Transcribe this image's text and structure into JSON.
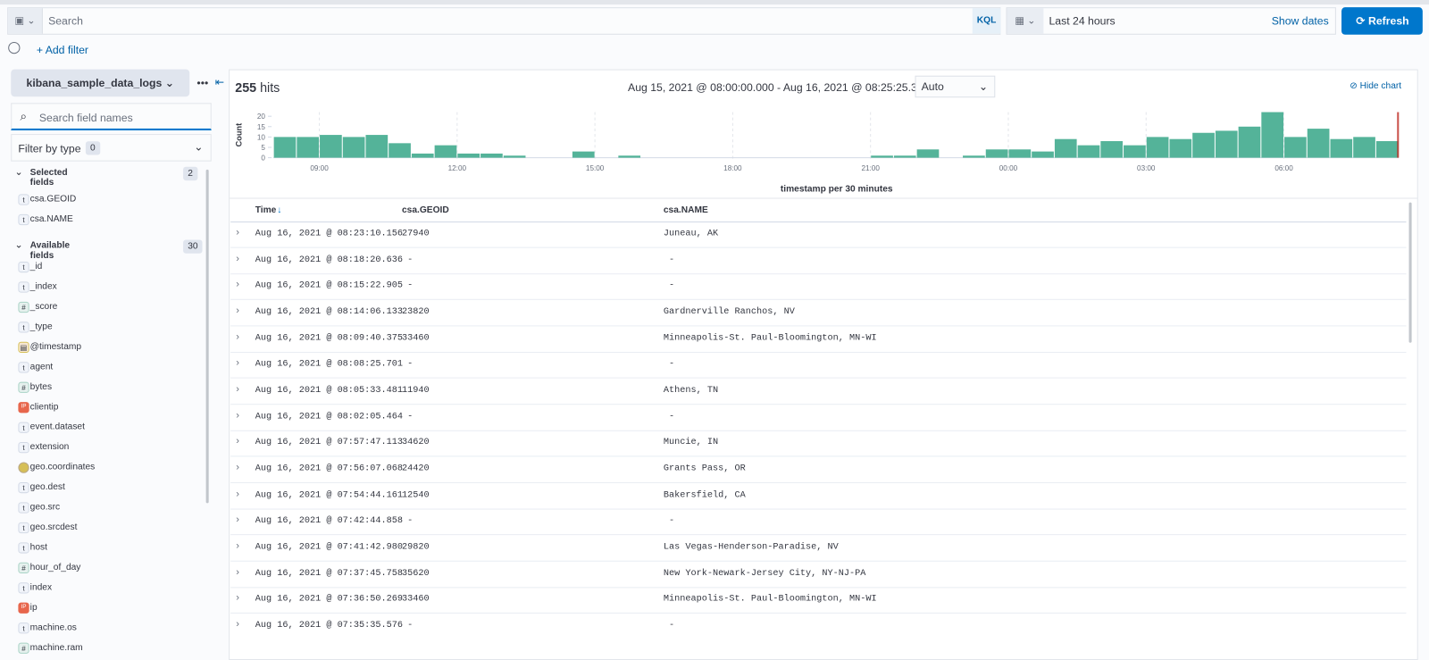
{
  "query_bar": {
    "placeholder": "Search",
    "language": "KQL"
  },
  "date_picker": {
    "range": "Last 24 hours",
    "show_dates": "Show dates"
  },
  "refresh": "Refresh",
  "add_filter": "+ Add filter",
  "sidebar": {
    "index_pattern": "kibana_sample_data_logs",
    "search_placeholder": "Search field names",
    "filter_by_type": "Filter by type",
    "filter_count": "0",
    "selected": {
      "title": "Selected fields",
      "count": "2",
      "fields": [
        {
          "name": "csa.GEOID",
          "type": "t"
        },
        {
          "name": "csa.NAME",
          "type": "t"
        }
      ]
    },
    "available": {
      "title": "Available fields",
      "count": "30",
      "fields": [
        {
          "name": "_id",
          "type": "t"
        },
        {
          "name": "_index",
          "type": "t"
        },
        {
          "name": "_score",
          "type": "#"
        },
        {
          "name": "_type",
          "type": "t"
        },
        {
          "name": "@timestamp",
          "type": "date"
        },
        {
          "name": "agent",
          "type": "t"
        },
        {
          "name": "bytes",
          "type": "#"
        },
        {
          "name": "clientip",
          "type": "IP"
        },
        {
          "name": "event.dataset",
          "type": "t"
        },
        {
          "name": "extension",
          "type": "t"
        },
        {
          "name": "geo.coordinates",
          "type": "geo"
        },
        {
          "name": "geo.dest",
          "type": "t"
        },
        {
          "name": "geo.src",
          "type": "t"
        },
        {
          "name": "geo.srcdest",
          "type": "t"
        },
        {
          "name": "host",
          "type": "t"
        },
        {
          "name": "hour_of_day",
          "type": "#"
        },
        {
          "name": "index",
          "type": "t"
        },
        {
          "name": "ip",
          "type": "IP"
        },
        {
          "name": "machine.os",
          "type": "t"
        },
        {
          "name": "machine.ram",
          "type": "#"
        }
      ]
    }
  },
  "results": {
    "hits": "255",
    "hits_label": "hits",
    "time_range": "Aug 15, 2021 @ 08:00:00.000 - Aug 16, 2021 @ 08:25:25.389",
    "interval": "Auto",
    "hide_chart": "Hide chart"
  },
  "chart_data": {
    "type": "bar",
    "x_label": "timestamp per 30 minutes",
    "y_label": "Count",
    "color": "#54b399",
    "categories": [
      null,
      null,
      "09:00",
      null,
      null,
      null,
      null,
      null,
      "12:00",
      null,
      null,
      null,
      null,
      null,
      "15:00",
      null,
      null,
      null,
      null,
      null,
      "18:00",
      null,
      null,
      null,
      null,
      null,
      "21:00",
      null,
      null,
      null,
      null,
      null,
      "00:00",
      null,
      null,
      null,
      null,
      null,
      "03:00",
      null,
      null,
      null,
      null,
      null,
      "06:00",
      null,
      null,
      null,
      null
    ],
    "values": [
      10,
      10,
      11,
      10,
      11,
      7,
      2,
      6,
      2,
      2,
      1,
      0,
      0,
      3,
      0,
      1,
      0,
      0,
      0,
      0,
      0,
      0,
      0,
      0,
      0,
      0,
      1,
      1,
      4,
      0,
      1,
      4,
      4,
      3,
      9,
      6,
      8,
      6,
      10,
      9,
      12,
      13,
      15,
      22,
      10,
      14,
      9,
      10,
      8
    ],
    "ylim": [
      0,
      22
    ],
    "yticks": [
      0,
      5,
      10,
      15,
      20
    ]
  },
  "table": {
    "columns": [
      "Time",
      "csa.GEOID",
      "csa.NAME"
    ],
    "rows": [
      [
        "Aug 16, 2021 @ 08:23:10.156",
        "27940",
        "Juneau, AK"
      ],
      [
        "Aug 16, 2021 @ 08:18:20.636",
        "-",
        "-"
      ],
      [
        "Aug 16, 2021 @ 08:15:22.905",
        "-",
        "-"
      ],
      [
        "Aug 16, 2021 @ 08:14:06.133",
        "23820",
        "Gardnerville Ranchos, NV"
      ],
      [
        "Aug 16, 2021 @ 08:09:40.375",
        "33460",
        "Minneapolis-St. Paul-Bloomington, MN-WI"
      ],
      [
        "Aug 16, 2021 @ 08:08:25.701",
        "-",
        "-"
      ],
      [
        "Aug 16, 2021 @ 08:05:33.481",
        "11940",
        "Athens, TN"
      ],
      [
        "Aug 16, 2021 @ 08:02:05.464",
        "-",
        "-"
      ],
      [
        "Aug 16, 2021 @ 07:57:47.113",
        "34620",
        "Muncie, IN"
      ],
      [
        "Aug 16, 2021 @ 07:56:07.068",
        "24420",
        "Grants Pass, OR"
      ],
      [
        "Aug 16, 2021 @ 07:54:44.161",
        "12540",
        "Bakersfield, CA"
      ],
      [
        "Aug 16, 2021 @ 07:42:44.858",
        "-",
        "-"
      ],
      [
        "Aug 16, 2021 @ 07:41:42.980",
        "29820",
        "Las Vegas-Henderson-Paradise, NV"
      ],
      [
        "Aug 16, 2021 @ 07:37:45.758",
        "35620",
        "New York-Newark-Jersey City, NY-NJ-PA"
      ],
      [
        "Aug 16, 2021 @ 07:36:50.269",
        "33460",
        "Minneapolis-St. Paul-Bloomington, MN-WI"
      ],
      [
        "Aug 16, 2021 @ 07:35:35.576",
        "-",
        "-"
      ]
    ]
  }
}
